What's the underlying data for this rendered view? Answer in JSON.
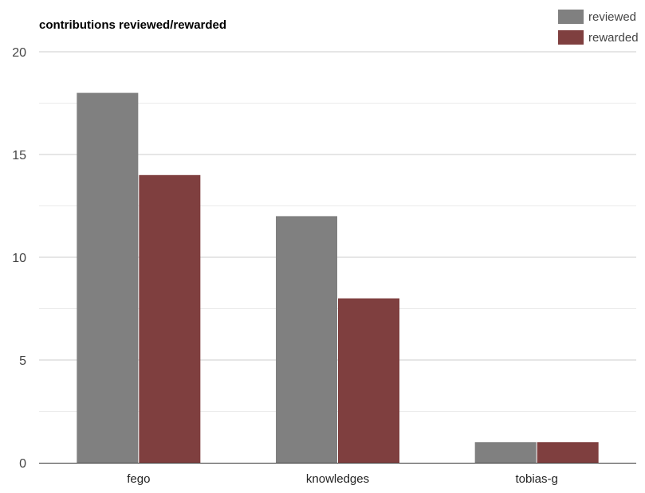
{
  "chart_data": {
    "type": "bar",
    "title": "contributions reviewed/rewarded",
    "xlabel": "",
    "ylabel": "",
    "categories": [
      "fego",
      "knowledges",
      "tobias-g"
    ],
    "series": [
      {
        "name": "reviewed",
        "values": [
          18,
          12,
          1
        ],
        "color": "#808080"
      },
      {
        "name": "rewarded",
        "values": [
          14,
          8,
          1
        ],
        "color": "#7f3f3f"
      }
    ],
    "ylim": [
      0,
      20
    ],
    "yticks": [
      0,
      5,
      10,
      15,
      20
    ],
    "minor_gridlines": [
      2.5,
      7.5,
      12.5,
      17.5
    ],
    "grid": true,
    "legend_position": "top-right",
    "colors": {
      "gridline": "#cccccc",
      "minor_gridline": "#ebebeb",
      "baseline": "#333333"
    }
  }
}
